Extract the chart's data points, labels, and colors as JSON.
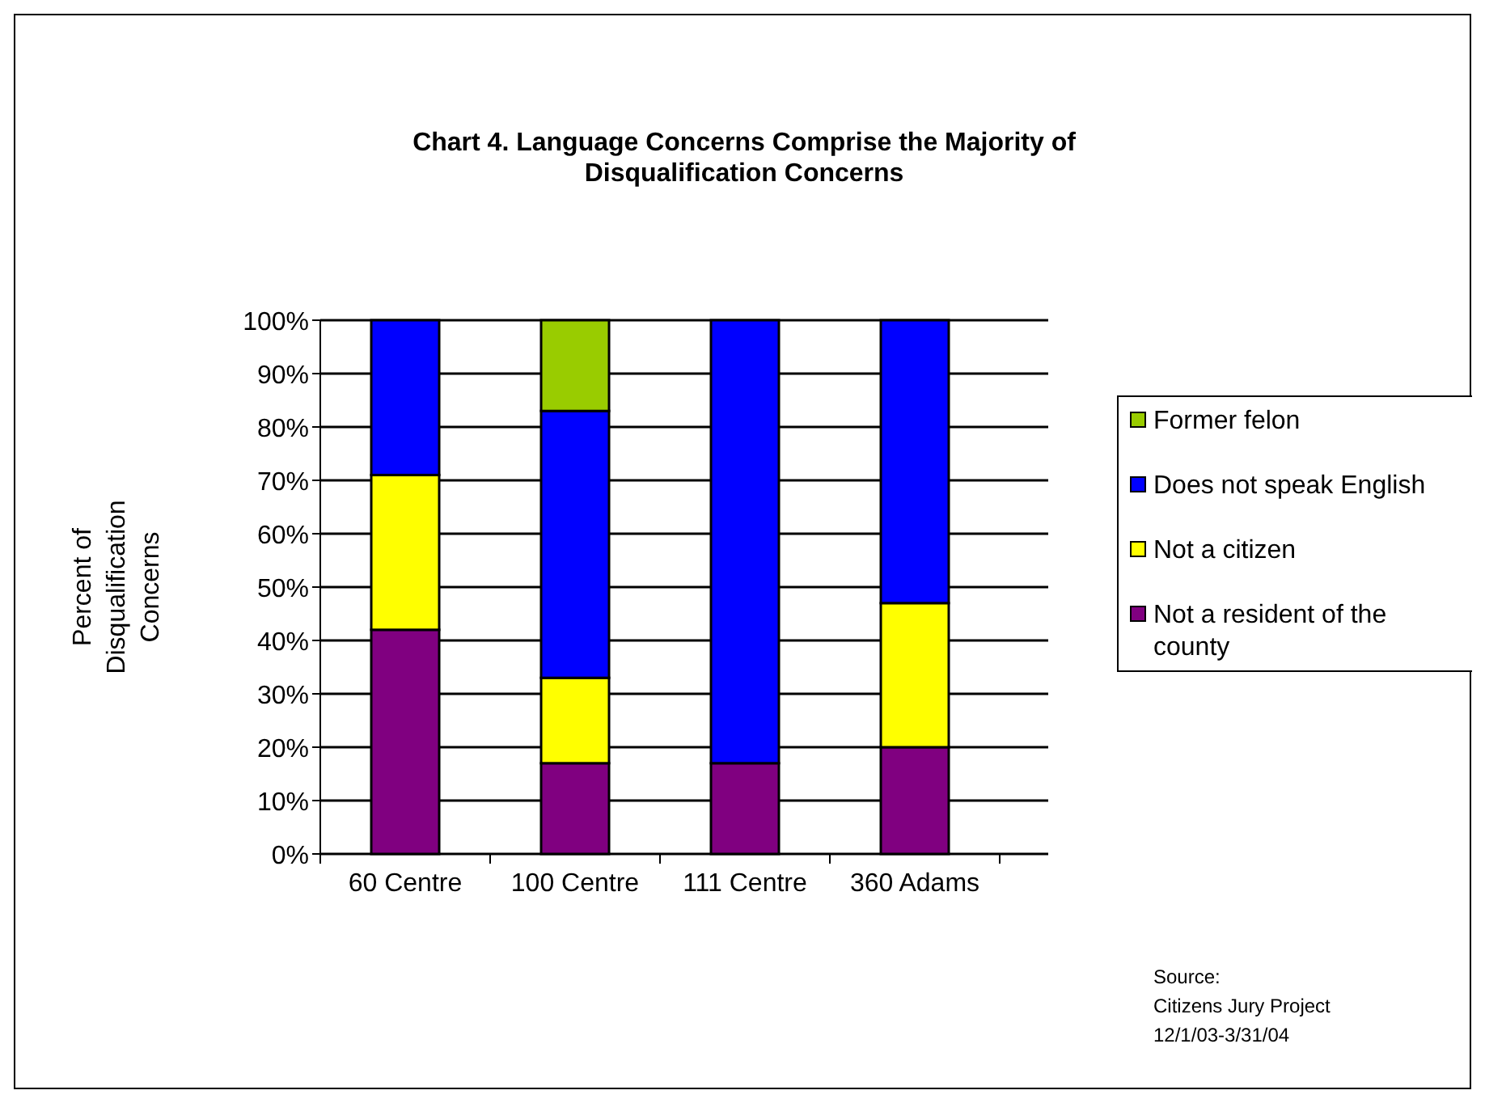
{
  "chart_data": {
    "type": "bar",
    "stacked": true,
    "title": "Chart 4. Language Concerns Comprise the Majority of Disqualification Concerns",
    "ylabel": "Percent of Disqualification Concerns",
    "categories": [
      "60 Centre",
      "100 Centre",
      "111 Centre",
      "360 Adams"
    ],
    "series": [
      {
        "name": "Not a resident of the county",
        "color": "#800080",
        "values": [
          42,
          17,
          17,
          20
        ]
      },
      {
        "name": "Not a citizen",
        "color": "#ffff00",
        "values": [
          29,
          16,
          0,
          27
        ]
      },
      {
        "name": "Does not speak English",
        "color": "#0000ff",
        "values": [
          29,
          50,
          83,
          53
        ]
      },
      {
        "name": "Former felon",
        "color": "#99cc00",
        "values": [
          0,
          17,
          0,
          0
        ]
      }
    ],
    "ylim": [
      0,
      100
    ],
    "yticks": [
      {
        "value": 0,
        "label": "0%"
      },
      {
        "value": 10,
        "label": "10%"
      },
      {
        "value": 20,
        "label": "20%"
      },
      {
        "value": 30,
        "label": "30%"
      },
      {
        "value": 40,
        "label": "40%"
      },
      {
        "value": 50,
        "label": "50%"
      },
      {
        "value": 60,
        "label": "60%"
      },
      {
        "value": 70,
        "label": "70%"
      },
      {
        "value": 80,
        "label": "80%"
      },
      {
        "value": 90,
        "label": "90%"
      },
      {
        "value": 100,
        "label": "100%"
      }
    ],
    "grid": "y",
    "legend": "right",
    "annotations": [
      "Source:",
      "Citizens Jury Project",
      "12/1/03-3/31/04"
    ]
  }
}
